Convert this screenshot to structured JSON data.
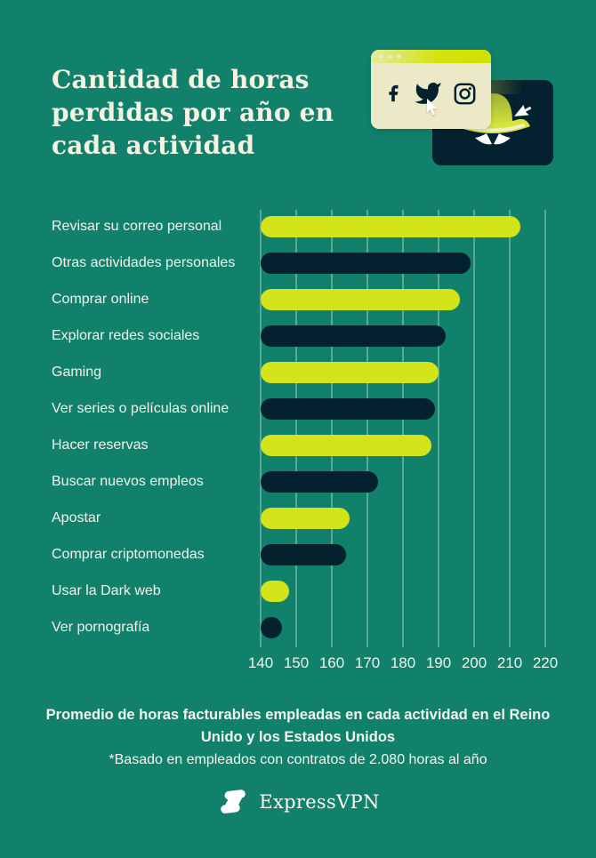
{
  "page": {
    "background": "#11816B"
  },
  "colors": {
    "teal_background": "#11816B",
    "lime": "#D3E41B",
    "navy": "#03212E",
    "cream": "#ECE9C8",
    "title_text": "#F6F2E2",
    "gridline": "rgba(255,255,255,0.30)"
  },
  "header": {
    "title_lines": [
      "Cantidad de horas",
      "perdidas por año en",
      "cada actividad"
    ]
  },
  "hero": {
    "icons": [
      "facebook-icon",
      "twitter-icon",
      "instagram-icon",
      "cursor-icon",
      "spy-hat-icon",
      "spy-eyes-icon"
    ]
  },
  "chart_data": {
    "type": "bar",
    "orientation": "horizontal",
    "title": "Cantidad de horas perdidas por año en cada actividad",
    "categories": [
      "Revisar su correo personal",
      "Otras actividades personales",
      "Comprar online",
      "Explorar redes sociales",
      "Gaming",
      "Ver series o películas online",
      "Hacer reservas",
      "Buscar nuevos empleos",
      "Apostar",
      "Comprar criptomonedas",
      "Usar la Dark web",
      "Ver pornografía"
    ],
    "values": [
      213,
      199,
      196,
      192,
      190,
      189,
      188,
      173,
      165,
      164,
      148,
      146
    ],
    "unit": "horas por año",
    "xlim": [
      140,
      220
    ],
    "x_ticks": [
      140,
      150,
      160,
      170,
      180,
      190,
      200,
      210,
      220
    ],
    "grid": true,
    "legend": false,
    "bar_colors": [
      "#D3E41B",
      "#03212E"
    ]
  },
  "footer": {
    "caption": "Promedio de horas facturables empleadas en cada actividad en el Reino Unido y los Estados Unidos",
    "footnote": "*Basado en empleados con contratos de 2.080 horas al año",
    "brand": "ExpressVPN"
  }
}
